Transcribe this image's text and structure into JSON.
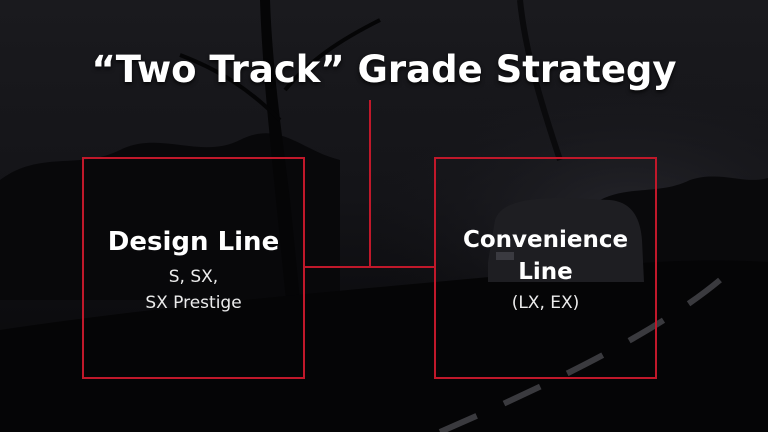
{
  "slide": {
    "title": "“Two Track” Grade Strategy",
    "accent_color": "#c0182a",
    "background_photo": "dark road at dusk with trees and van"
  },
  "boxes": {
    "left": {
      "heading": "Design Line",
      "sub_lines": [
        "S, SX,",
        "SX Prestige"
      ]
    },
    "right": {
      "heading_lines": [
        "Convenience",
        "Line"
      ],
      "sub_lines": [
        "(LX, EX)"
      ]
    }
  }
}
